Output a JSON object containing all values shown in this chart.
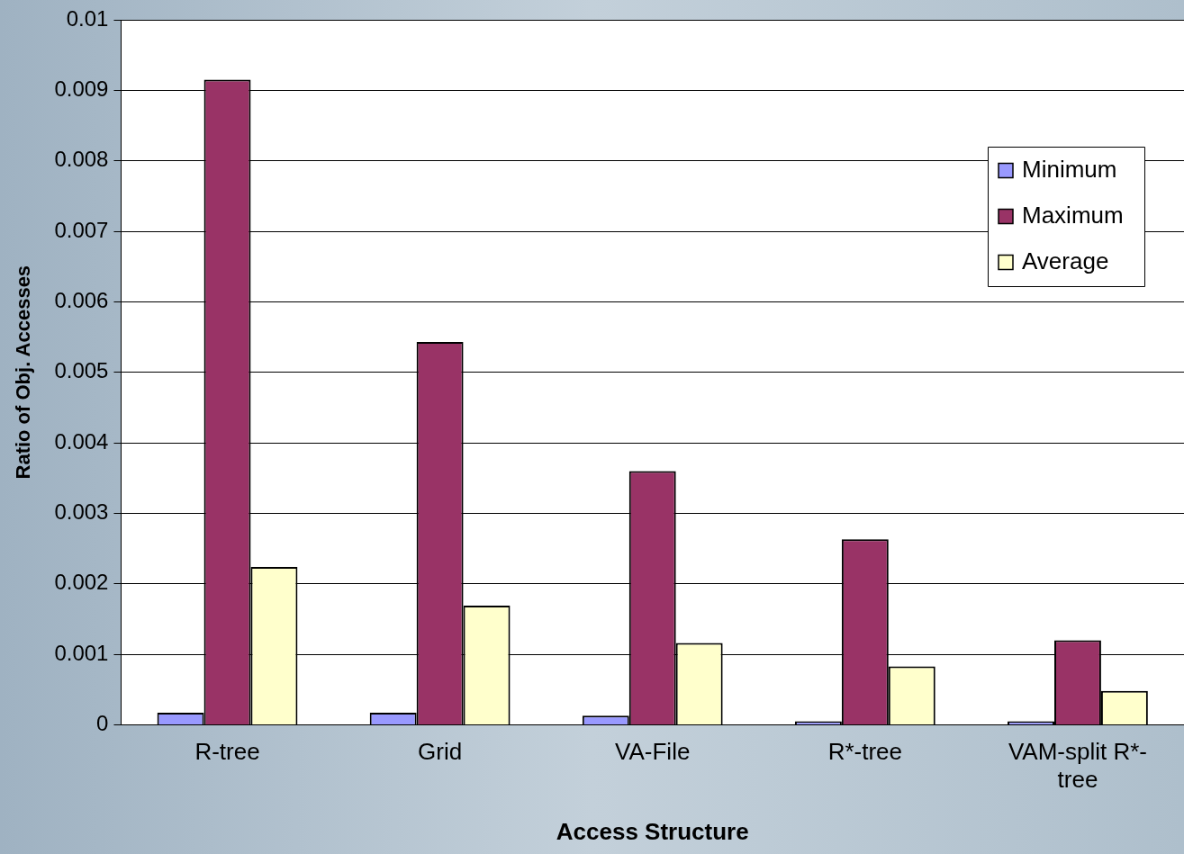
{
  "chart_data": {
    "type": "bar",
    "xlabel": "Access Structure",
    "ylabel": "Ratio of Obj. Accesses",
    "categories": [
      "R-tree",
      "Grid",
      "VA-File",
      "R*-tree",
      "VAM-split R*-tree"
    ],
    "series": [
      {
        "name": "Minimum",
        "color": "#9999ff",
        "values": [
          0.00017,
          0.00017,
          0.00013,
          5e-05,
          5e-05
        ]
      },
      {
        "name": "Maximum",
        "color": "#993366",
        "values": [
          0.00915,
          0.00543,
          0.0036,
          0.00263,
          0.0012
        ]
      },
      {
        "name": "Average",
        "color": "#ffffcc",
        "values": [
          0.00224,
          0.00169,
          0.00116,
          0.00083,
          0.00048
        ]
      }
    ],
    "ylim": [
      0,
      0.01
    ],
    "yticks": [
      0,
      0.001,
      0.002,
      0.003,
      0.004,
      0.005,
      0.006,
      0.007,
      0.008,
      0.009,
      0.01
    ],
    "grid": "y",
    "legend": "right"
  }
}
